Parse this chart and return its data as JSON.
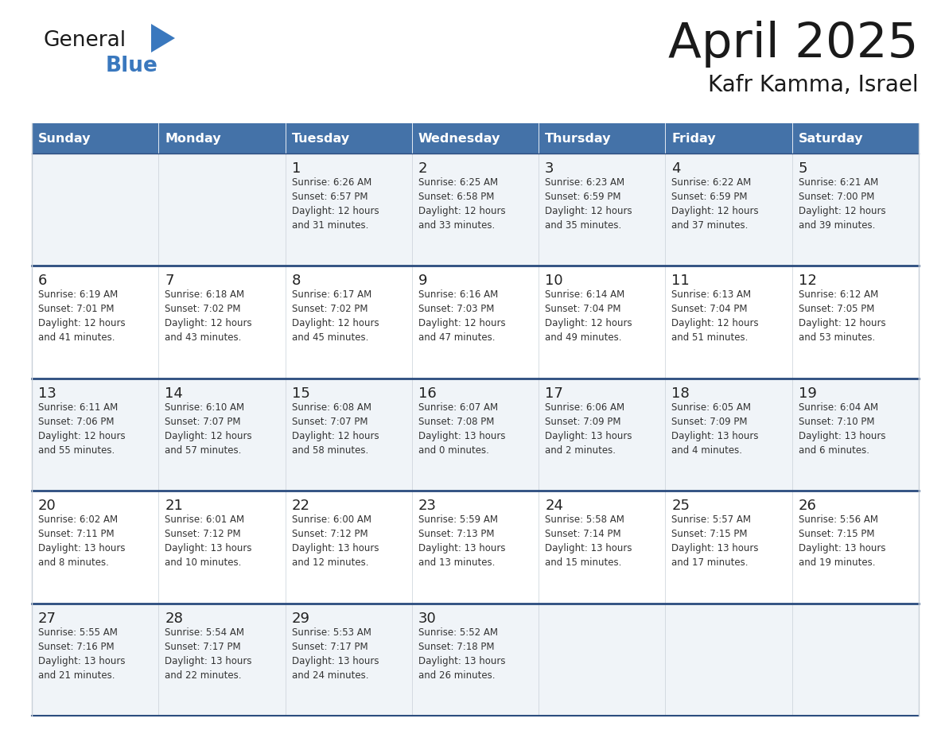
{
  "title": "April 2025",
  "subtitle": "Kafr Kamma, Israel",
  "days_of_week": [
    "Sunday",
    "Monday",
    "Tuesday",
    "Wednesday",
    "Thursday",
    "Friday",
    "Saturday"
  ],
  "header_bg": "#4472A8",
  "header_text": "#FFFFFF",
  "cell_bg_odd": "#F0F4F8",
  "cell_bg_even": "#FFFFFF",
  "week_separator_color": "#2B4C7E",
  "cell_border_color": "#C8D0D8",
  "day_num_color": "#222222",
  "text_color": "#333333",
  "title_color": "#1a1a1a",
  "logo_general_color": "#1a1a1a",
  "logo_blue_color": "#3A78BE",
  "weeks": [
    [
      {
        "day": null,
        "info": null
      },
      {
        "day": null,
        "info": null
      },
      {
        "day": 1,
        "info": "Sunrise: 6:26 AM\nSunset: 6:57 PM\nDaylight: 12 hours\nand 31 minutes."
      },
      {
        "day": 2,
        "info": "Sunrise: 6:25 AM\nSunset: 6:58 PM\nDaylight: 12 hours\nand 33 minutes."
      },
      {
        "day": 3,
        "info": "Sunrise: 6:23 AM\nSunset: 6:59 PM\nDaylight: 12 hours\nand 35 minutes."
      },
      {
        "day": 4,
        "info": "Sunrise: 6:22 AM\nSunset: 6:59 PM\nDaylight: 12 hours\nand 37 minutes."
      },
      {
        "day": 5,
        "info": "Sunrise: 6:21 AM\nSunset: 7:00 PM\nDaylight: 12 hours\nand 39 minutes."
      }
    ],
    [
      {
        "day": 6,
        "info": "Sunrise: 6:19 AM\nSunset: 7:01 PM\nDaylight: 12 hours\nand 41 minutes."
      },
      {
        "day": 7,
        "info": "Sunrise: 6:18 AM\nSunset: 7:02 PM\nDaylight: 12 hours\nand 43 minutes."
      },
      {
        "day": 8,
        "info": "Sunrise: 6:17 AM\nSunset: 7:02 PM\nDaylight: 12 hours\nand 45 minutes."
      },
      {
        "day": 9,
        "info": "Sunrise: 6:16 AM\nSunset: 7:03 PM\nDaylight: 12 hours\nand 47 minutes."
      },
      {
        "day": 10,
        "info": "Sunrise: 6:14 AM\nSunset: 7:04 PM\nDaylight: 12 hours\nand 49 minutes."
      },
      {
        "day": 11,
        "info": "Sunrise: 6:13 AM\nSunset: 7:04 PM\nDaylight: 12 hours\nand 51 minutes."
      },
      {
        "day": 12,
        "info": "Sunrise: 6:12 AM\nSunset: 7:05 PM\nDaylight: 12 hours\nand 53 minutes."
      }
    ],
    [
      {
        "day": 13,
        "info": "Sunrise: 6:11 AM\nSunset: 7:06 PM\nDaylight: 12 hours\nand 55 minutes."
      },
      {
        "day": 14,
        "info": "Sunrise: 6:10 AM\nSunset: 7:07 PM\nDaylight: 12 hours\nand 57 minutes."
      },
      {
        "day": 15,
        "info": "Sunrise: 6:08 AM\nSunset: 7:07 PM\nDaylight: 12 hours\nand 58 minutes."
      },
      {
        "day": 16,
        "info": "Sunrise: 6:07 AM\nSunset: 7:08 PM\nDaylight: 13 hours\nand 0 minutes."
      },
      {
        "day": 17,
        "info": "Sunrise: 6:06 AM\nSunset: 7:09 PM\nDaylight: 13 hours\nand 2 minutes."
      },
      {
        "day": 18,
        "info": "Sunrise: 6:05 AM\nSunset: 7:09 PM\nDaylight: 13 hours\nand 4 minutes."
      },
      {
        "day": 19,
        "info": "Sunrise: 6:04 AM\nSunset: 7:10 PM\nDaylight: 13 hours\nand 6 minutes."
      }
    ],
    [
      {
        "day": 20,
        "info": "Sunrise: 6:02 AM\nSunset: 7:11 PM\nDaylight: 13 hours\nand 8 minutes."
      },
      {
        "day": 21,
        "info": "Sunrise: 6:01 AM\nSunset: 7:12 PM\nDaylight: 13 hours\nand 10 minutes."
      },
      {
        "day": 22,
        "info": "Sunrise: 6:00 AM\nSunset: 7:12 PM\nDaylight: 13 hours\nand 12 minutes."
      },
      {
        "day": 23,
        "info": "Sunrise: 5:59 AM\nSunset: 7:13 PM\nDaylight: 13 hours\nand 13 minutes."
      },
      {
        "day": 24,
        "info": "Sunrise: 5:58 AM\nSunset: 7:14 PM\nDaylight: 13 hours\nand 15 minutes."
      },
      {
        "day": 25,
        "info": "Sunrise: 5:57 AM\nSunset: 7:15 PM\nDaylight: 13 hours\nand 17 minutes."
      },
      {
        "day": 26,
        "info": "Sunrise: 5:56 AM\nSunset: 7:15 PM\nDaylight: 13 hours\nand 19 minutes."
      }
    ],
    [
      {
        "day": 27,
        "info": "Sunrise: 5:55 AM\nSunset: 7:16 PM\nDaylight: 13 hours\nand 21 minutes."
      },
      {
        "day": 28,
        "info": "Sunrise: 5:54 AM\nSunset: 7:17 PM\nDaylight: 13 hours\nand 22 minutes."
      },
      {
        "day": 29,
        "info": "Sunrise: 5:53 AM\nSunset: 7:17 PM\nDaylight: 13 hours\nand 24 minutes."
      },
      {
        "day": 30,
        "info": "Sunrise: 5:52 AM\nSunset: 7:18 PM\nDaylight: 13 hours\nand 26 minutes."
      },
      {
        "day": null,
        "info": null
      },
      {
        "day": null,
        "info": null
      },
      {
        "day": null,
        "info": null
      }
    ]
  ]
}
